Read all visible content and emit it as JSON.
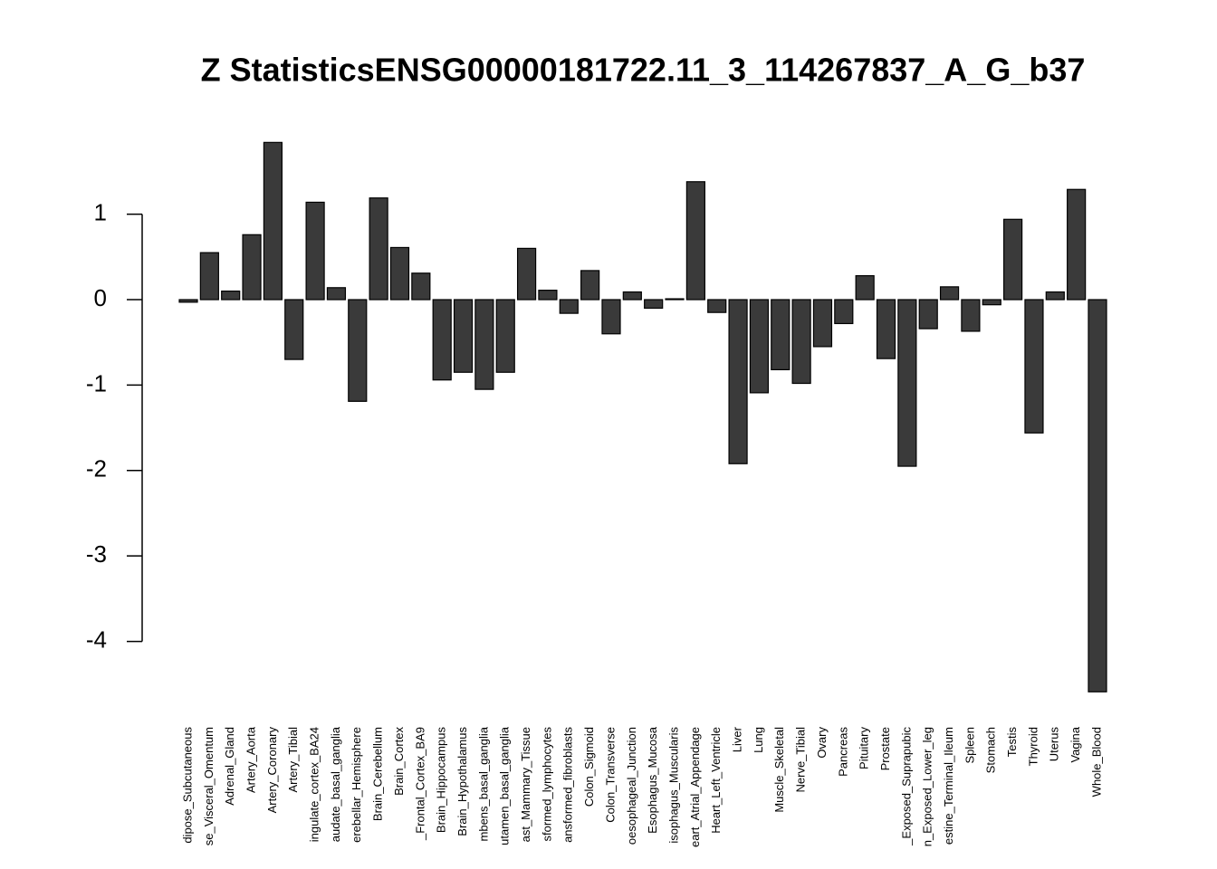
{
  "chart_data": {
    "type": "bar",
    "title": "Z StatisticsENSG00000181722.11_3_114267837_A_G_b37",
    "categories": [
      "dipose_Subcutaneous",
      "se_Visceral_Omentum",
      "Adrenal_Gland",
      "Artery_Aorta",
      "Artery_Coronary",
      "Artery_Tibial",
      "ingulate_cortex_BA24",
      "audate_basal_ganglia",
      "erebellar_Hemisphere",
      "Brain_Cerebellum",
      "Brain_Cortex",
      "_Frontal_Cortex_BA9",
      "Brain_Hippocampus",
      "Brain_Hypothalamus",
      "mbens_basal_ganglia",
      "utamen_basal_ganglia",
      "ast_Mammary_Tissue",
      "sformed_lymphocytes",
      "ansformed_fibroblasts",
      "Colon_Sigmoid",
      "Colon_Transverse",
      "oesophageal_Junction",
      "Esophagus_Mucosa",
      "isophagus_Muscularis",
      "eart_Atrial_Appendage",
      "Heart_Left_Ventricle",
      "Liver",
      "Lung",
      "Muscle_Skeletal",
      "Nerve_Tibial",
      "Ovary",
      "Pancreas",
      "Pituitary",
      "Prostate",
      "_Exposed_Suprapubic",
      "n_Exposed_Lower_leg",
      "estine_Terminal_Ileum",
      "Spleen",
      "Stomach",
      "Testis",
      "Thyroid",
      "Uterus",
      "Vagina",
      "Whole_Blood"
    ],
    "values": [
      -0.03,
      0.55,
      0.1,
      0.76,
      1.84,
      -0.7,
      1.14,
      0.14,
      -1.19,
      1.19,
      0.61,
      0.31,
      -0.94,
      -0.85,
      -1.05,
      -0.85,
      0.6,
      0.11,
      -0.16,
      0.34,
      -0.4,
      0.09,
      -0.1,
      0.01,
      1.38,
      -0.15,
      -1.92,
      -1.09,
      -0.82,
      -0.98,
      -0.55,
      -0.28,
      0.28,
      -0.69,
      -1.95,
      -0.34,
      0.15,
      -0.37,
      -0.06,
      0.94,
      -1.56,
      0.09,
      1.29,
      -4.59
    ],
    "color": "#3a3a3a",
    "ylim": [
      -4.6,
      1.85
    ],
    "yticks": [
      -4,
      -3,
      -2,
      -1,
      0,
      1
    ]
  }
}
